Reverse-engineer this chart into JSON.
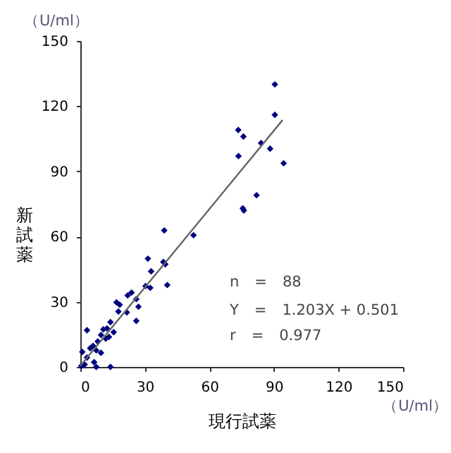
{
  "chart_data": {
    "type": "scatter",
    "xlabel": "現行試薬",
    "ylabel": "新試薬",
    "annotations": [
      "（U/ml）",
      "（U/ml）",
      "n　=　88",
      "Y　=　1.203X + 0.501",
      "r　=　0.977"
    ],
    "xlim": [
      0,
      150
    ],
    "ylim": [
      0,
      150
    ],
    "xticks": [
      0,
      30,
      60,
      90,
      120,
      150
    ],
    "yticks": [
      0,
      30,
      60,
      90,
      120,
      150
    ],
    "grid": false,
    "marker": "diamond",
    "series": [
      {
        "type": "scatter",
        "color": "#000080",
        "x": [
          90.4,
          90.4,
          73.4,
          75.8,
          73.5,
          84,
          88.2,
          94.5,
          81.9,
          75.5,
          76,
          39,
          52.6,
          31.4,
          38.6,
          39.5,
          32.9,
          30.3,
          32.5,
          40.4,
          23.8,
          22,
          26,
          16.8,
          18.3,
          17.7,
          21.6,
          27,
          26,
          14,
          12.4,
          10.7,
          15.5,
          9.6,
          13.3,
          11.8,
          3.1,
          8.1,
          5.9,
          4.6,
          9.6,
          0.9,
          7.4,
          3.1,
          6.4,
          2,
          7.4,
          14,
          0.5
        ],
        "values": [
          130,
          116,
          109,
          106,
          97,
          103,
          100.4,
          93.7,
          79,
          73,
          72,
          62.8,
          60.6,
          49.8,
          48.3,
          47.2,
          44,
          37.2,
          36.4,
          37.7,
          34.2,
          32.9,
          31.2,
          29.7,
          28.6,
          25.5,
          25.1,
          27.7,
          21.2,
          20.6,
          17.7,
          17.3,
          16,
          14.7,
          13.8,
          13,
          16.9,
          11.7,
          9.7,
          8.6,
          6.5,
          6.9,
          7.6,
          4.3,
          2.2,
          1.1,
          0,
          0,
          0.5
        ]
      },
      {
        "type": "line",
        "marker": "none",
        "color": "#666666",
        "x": [
          0,
          94
        ],
        "values": [
          0.5,
          113.6
        ]
      }
    ]
  }
}
